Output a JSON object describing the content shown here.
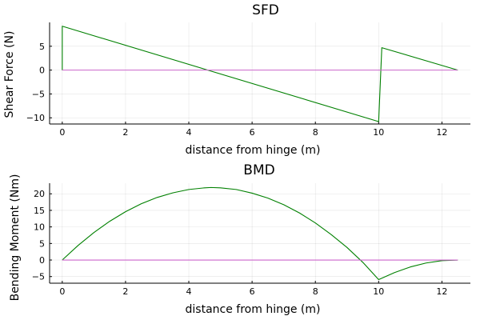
{
  "chart_data": [
    {
      "type": "line",
      "title": "SFD",
      "xlabel": "distance from hinge (m)",
      "ylabel": "Shear Force (N)",
      "xlim": [
        -0.4,
        12.9
      ],
      "ylim": [
        -11.3,
        10.0
      ],
      "xticks": [
        0,
        2,
        4,
        6,
        8,
        10,
        12
      ],
      "yticks": [
        -10,
        -5,
        0,
        5
      ],
      "grid": true,
      "legend": "none",
      "series": [
        {
          "color": "#008000",
          "x": [
            0,
            0,
            10,
            10.1,
            12.5
          ],
          "y": [
            0,
            9.2,
            -10.8,
            4.7,
            0
          ]
        },
        {
          "color": "#cc66cc",
          "x": [
            0,
            12.5
          ],
          "y": [
            0,
            0
          ]
        }
      ]
    },
    {
      "type": "line",
      "title": "BMD",
      "xlabel": "distance from hinge (m)",
      "ylabel": "Bending Moment (Nm)",
      "xlim": [
        -0.4,
        12.9
      ],
      "ylim": [
        -7.0,
        23.2
      ],
      "xticks": [
        0,
        2,
        4,
        6,
        8,
        10,
        12
      ],
      "yticks": [
        -5,
        0,
        5,
        10,
        15,
        20
      ],
      "grid": true,
      "legend": "none",
      "series": [
        {
          "color": "#008000",
          "x": [
            0,
            0.5,
            1,
            1.5,
            2,
            2.5,
            3,
            3.5,
            4,
            4.5,
            4.7,
            5,
            5.5,
            6,
            6.5,
            7,
            7.5,
            8,
            8.5,
            9,
            9.5,
            10,
            10.5,
            11,
            11.5,
            12,
            12.5
          ],
          "y": [
            0,
            4.4,
            8.3,
            11.7,
            14.6,
            17.0,
            18.9,
            20.3,
            21.3,
            21.8,
            21.9,
            21.8,
            21.3,
            20.2,
            18.7,
            16.7,
            14.2,
            11.2,
            7.7,
            3.8,
            -0.7,
            -5.9,
            -3.8,
            -2.1,
            -0.9,
            -0.2,
            0
          ]
        },
        {
          "color": "#cc66cc",
          "x": [
            0,
            12.5
          ],
          "y": [
            0,
            0
          ]
        }
      ]
    }
  ]
}
